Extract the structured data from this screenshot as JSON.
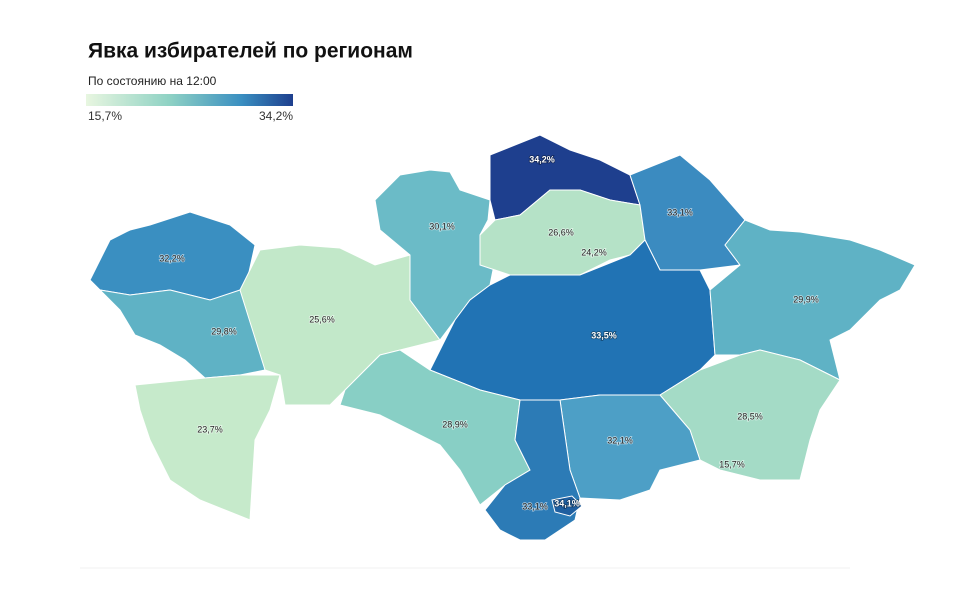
{
  "header": {
    "title": "Явка избирателей по регионам",
    "subtitle": "По состоянию на 12:00"
  },
  "legend": {
    "min_label": "15,7%",
    "max_label": "34,2%"
  },
  "regions": [
    {
      "label": "34,2%"
    },
    {
      "label": "33,1%"
    },
    {
      "label": "30,1%"
    },
    {
      "label": "26,6%"
    },
    {
      "label": "24,2%"
    },
    {
      "label": "32,2%"
    },
    {
      "label": "29,9%"
    },
    {
      "label": "29,8%"
    },
    {
      "label": "25,6%"
    },
    {
      "label": "33,5%"
    },
    {
      "label": "23,7%"
    },
    {
      "label": "28,9%"
    },
    {
      "label": "32,1%"
    },
    {
      "label": "28,5%"
    },
    {
      "label": "15,7%"
    },
    {
      "label": "33,1%"
    },
    {
      "label": "34,1%"
    }
  ]
}
